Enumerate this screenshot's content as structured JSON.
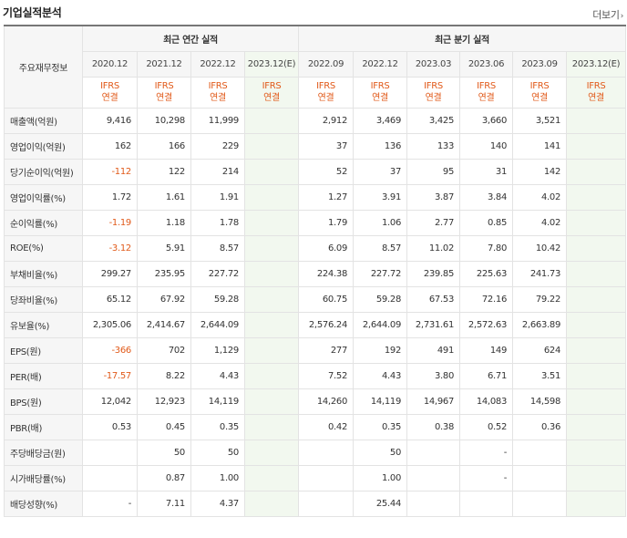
{
  "section": {
    "title": "기업실적분석",
    "more_label": "더보기"
  },
  "table": {
    "corner_label": "주요재무정보",
    "annual_header": "최근 연간 실적",
    "quarterly_header": "최근 분기 실적",
    "annual_periods": [
      "2020.12",
      "2021.12",
      "2022.12",
      "2023.12(E)"
    ],
    "quarterly_periods": [
      "2022.09",
      "2022.12",
      "2023.03",
      "2023.06",
      "2023.09",
      "2023.12(E)"
    ],
    "standard_line1": "IFRS",
    "standard_line2": "연결",
    "rows": [
      {
        "label": "매출액(억원)",
        "annual": [
          "9,416",
          "10,298",
          "11,999",
          ""
        ],
        "quarterly": [
          "2,912",
          "3,469",
          "3,425",
          "3,660",
          "3,521",
          ""
        ]
      },
      {
        "label": "영업이익(억원)",
        "annual": [
          "162",
          "166",
          "229",
          ""
        ],
        "quarterly": [
          "37",
          "136",
          "133",
          "140",
          "141",
          ""
        ]
      },
      {
        "label": "당기순이익(억원)",
        "annual": [
          "-112",
          "122",
          "214",
          ""
        ],
        "quarterly": [
          "52",
          "37",
          "95",
          "31",
          "142",
          ""
        ]
      },
      {
        "label": "영업이익률(%)",
        "annual": [
          "1.72",
          "1.61",
          "1.91",
          ""
        ],
        "quarterly": [
          "1.27",
          "3.91",
          "3.87",
          "3.84",
          "4.02",
          ""
        ]
      },
      {
        "label": "순이익률(%)",
        "annual": [
          "-1.19",
          "1.18",
          "1.78",
          ""
        ],
        "quarterly": [
          "1.79",
          "1.06",
          "2.77",
          "0.85",
          "4.02",
          ""
        ]
      },
      {
        "label": "ROE(%)",
        "annual": [
          "-3.12",
          "5.91",
          "8.57",
          ""
        ],
        "quarterly": [
          "6.09",
          "8.57",
          "11.02",
          "7.80",
          "10.42",
          ""
        ]
      },
      {
        "label": "부채비율(%)",
        "annual": [
          "299.27",
          "235.95",
          "227.72",
          ""
        ],
        "quarterly": [
          "224.38",
          "227.72",
          "239.85",
          "225.63",
          "241.73",
          ""
        ]
      },
      {
        "label": "당좌비율(%)",
        "annual": [
          "65.12",
          "67.92",
          "59.28",
          ""
        ],
        "quarterly": [
          "60.75",
          "59.28",
          "67.53",
          "72.16",
          "79.22",
          ""
        ]
      },
      {
        "label": "유보율(%)",
        "annual": [
          "2,305.06",
          "2,414.67",
          "2,644.09",
          ""
        ],
        "quarterly": [
          "2,576.24",
          "2,644.09",
          "2,731.61",
          "2,572.63",
          "2,663.89",
          ""
        ]
      },
      {
        "label": "EPS(원)",
        "annual": [
          "-366",
          "702",
          "1,129",
          ""
        ],
        "quarterly": [
          "277",
          "192",
          "491",
          "149",
          "624",
          ""
        ]
      },
      {
        "label": "PER(배)",
        "annual": [
          "-17.57",
          "8.22",
          "4.43",
          ""
        ],
        "quarterly": [
          "7.52",
          "4.43",
          "3.80",
          "6.71",
          "3.51",
          ""
        ]
      },
      {
        "label": "BPS(원)",
        "annual": [
          "12,042",
          "12,923",
          "14,119",
          ""
        ],
        "quarterly": [
          "14,260",
          "14,119",
          "14,967",
          "14,083",
          "14,598",
          ""
        ]
      },
      {
        "label": "PBR(배)",
        "annual": [
          "0.53",
          "0.45",
          "0.35",
          ""
        ],
        "quarterly": [
          "0.42",
          "0.35",
          "0.38",
          "0.52",
          "0.36",
          ""
        ]
      },
      {
        "label": "주당배당금(원)",
        "annual": [
          "",
          "50",
          "50",
          ""
        ],
        "quarterly": [
          "",
          "50",
          "",
          "-",
          "",
          ""
        ]
      },
      {
        "label": "시가배당률(%)",
        "annual": [
          "",
          "0.87",
          "1.00",
          ""
        ],
        "quarterly": [
          "",
          "1.00",
          "",
          "-",
          "",
          ""
        ]
      },
      {
        "label": "배당성향(%)",
        "annual": [
          "-",
          "7.11",
          "4.37",
          ""
        ],
        "quarterly": [
          "",
          "25.44",
          "",
          "",
          "",
          ""
        ]
      }
    ]
  },
  "colors": {
    "negative": "#e15a1a",
    "standard_text": "#e15a1a",
    "estimate_bg": "#f2f8ef"
  }
}
